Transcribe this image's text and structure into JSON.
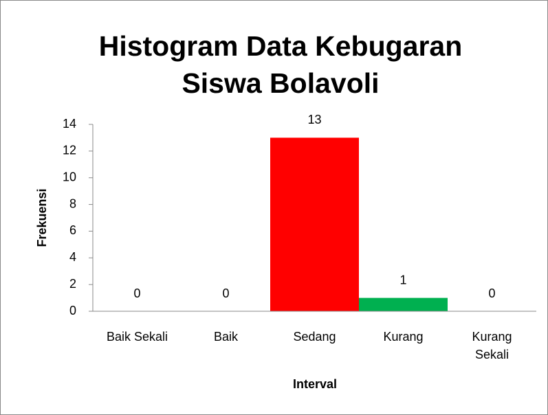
{
  "chart_data": {
    "type": "bar",
    "title": "Histogram Data Kebugaran Siswa Bolavoli",
    "x_label": "Interval",
    "y_label": "Frekuensi",
    "categories": [
      "Baik Sekali",
      "Baik",
      "Sedang",
      "Kurang",
      "Kurang Sekali"
    ],
    "values": [
      0,
      0,
      13,
      1,
      0
    ],
    "colors": [
      null,
      null,
      "#ff0000",
      "#00b050",
      null
    ],
    "ylim": [
      0,
      14
    ],
    "yticks": [
      0,
      2,
      4,
      6,
      8,
      10,
      12,
      14
    ],
    "grid": false
  }
}
